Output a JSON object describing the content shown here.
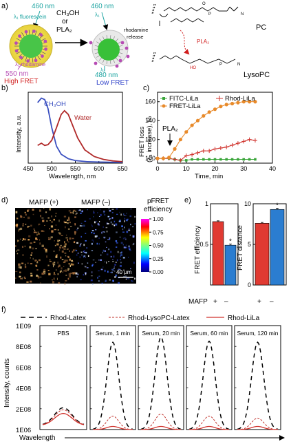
{
  "panel_a": {
    "label": "a)",
    "lambda_top_left": "460 nm",
    "lambda_top_left_sub": "λ₁ fluorescein",
    "reagents_line1": "CH₃OH",
    "reagents_line2": "or",
    "reagents_line3": "PLA₂",
    "lambda_top_right": "460 nm",
    "lambda_top_right_sub": "λ₁",
    "release_label_1": "rhodamine",
    "release_label_2": "release",
    "lambda_bottom_left_sub": "λ₂ rhodamine",
    "lambda_bottom_left": "550 nm",
    "state_left": "High FRET",
    "lambda_bottom_right_sub": "λ₃",
    "lambda_bottom_right": "480 nm",
    "state_right": "Low FRET",
    "pla2_label": "PLA₂",
    "pc_label": "PC",
    "lysopc_label": "LysoPC",
    "colors": {
      "teal": "#1aa3a0",
      "magenta": "#b64bb4",
      "red": "#d11d1d",
      "blue": "#2c3fc8",
      "green": "#3fbf3f",
      "yellow": "#f4e14a"
    }
  },
  "panel_b": {
    "label": "b)",
    "chart_data": {
      "type": "line",
      "xlabel": "Wavelength, nm",
      "ylabel": "Intensity, a.u.",
      "xlim": [
        450,
        650
      ],
      "xticks": [
        "450",
        "500",
        "550",
        "600",
        "650"
      ],
      "series": [
        {
          "name": "CH₃OH",
          "color": "#3a4fc0",
          "x": [
            470,
            478,
            485,
            492,
            500,
            510,
            520,
            535,
            550,
            575,
            600,
            650
          ],
          "y": [
            8.2,
            8.8,
            8.6,
            7.4,
            4.8,
            2.3,
            1.2,
            0.6,
            0.35,
            0.2,
            0.15,
            0.1
          ]
        },
        {
          "name": "Water",
          "color": "#b02828",
          "x": [
            470,
            478,
            485,
            492,
            500,
            510,
            520,
            527,
            535,
            545,
            555,
            570,
            590,
            610,
            630,
            650
          ],
          "y": [
            2.4,
            2.7,
            2.4,
            2.5,
            3.1,
            4.8,
            6.6,
            7.1,
            6.6,
            5.0,
            3.4,
            1.8,
            0.9,
            0.5,
            0.3,
            0.2
          ]
        }
      ]
    }
  },
  "panel_c": {
    "label": "c)",
    "chart_data": {
      "type": "line",
      "xlabel": "Time, min",
      "ylabel_line1": "FRET loss",
      "ylabel_line2": "(λ₃ increase), %",
      "xlim": [
        0,
        40
      ],
      "ylim": [
        95,
        170
      ],
      "xticks": [
        "0",
        "10",
        "20",
        "30",
        "40"
      ],
      "yticks": [
        "100",
        "120",
        "140",
        "160"
      ],
      "arrow_label": "PLA₂",
      "arrow_at_x": 5,
      "series": [
        {
          "name": "FITC-LiLa",
          "color": "#3aa53a",
          "marker": "square",
          "x": [
            0,
            2,
            4,
            6,
            8,
            10,
            12,
            14,
            16,
            18,
            20,
            22,
            24,
            26,
            28,
            30,
            32,
            34
          ],
          "y": [
            100,
            100,
            100,
            99,
            98,
            98,
            99,
            99,
            99,
            99,
            99,
            99,
            99,
            99,
            99,
            99,
            99,
            99
          ]
        },
        {
          "name": "Rhod-LiLa",
          "color": "#d0322c",
          "marker": "plus",
          "x": [
            0,
            2,
            4,
            6,
            8,
            10,
            12,
            14,
            16,
            18,
            20,
            22,
            24,
            26,
            28,
            30,
            32,
            34
          ],
          "y": [
            100,
            100,
            100,
            99,
            98,
            103,
            104,
            106,
            108,
            108,
            110,
            111,
            112,
            114,
            116,
            118,
            120,
            119
          ]
        },
        {
          "name": "FRET-LiLa",
          "color": "#e88a2a",
          "marker": "circle",
          "x": [
            0,
            2,
            4,
            6,
            8,
            10,
            12,
            14,
            16,
            18,
            20,
            22,
            24,
            26,
            28,
            30,
            32,
            34
          ],
          "y": [
            100,
            100,
            101,
            110,
            120,
            128,
            135,
            140,
            145,
            149,
            152,
            155,
            157,
            158,
            159,
            160,
            160,
            160
          ]
        }
      ]
    }
  },
  "panel_d": {
    "label": "d)",
    "image_left_title": "MAFP (+)",
    "image_right_title": "MAFP (–)",
    "colorbar_title_1": "pFRET",
    "colorbar_title_2": "efficiency",
    "colorbar_ticks": [
      "1.00",
      "0.75",
      "0.50",
      "0.25",
      "0.00"
    ],
    "scale_bar": "40 μm"
  },
  "panel_e": {
    "label": "e)",
    "chart_data": [
      {
        "type": "bar",
        "ylabel": "FRET efficiency",
        "categories": [
          "+",
          "–"
        ],
        "values": [
          0.78,
          0.49
        ],
        "errors": [
          0.01,
          0.015
        ],
        "colors": [
          "#e03a32",
          "#2b7dd0"
        ],
        "ylim": [
          0,
          1
        ],
        "yticks": [
          "0.5",
          "1"
        ],
        "asterisk": "*"
      },
      {
        "type": "bar",
        "ylabel": "FRET distance",
        "categories": [
          "+",
          "–"
        ],
        "values": [
          7.6,
          9.3
        ],
        "errors": [
          0.1,
          0.15
        ],
        "colors": [
          "#e03a32",
          "#2b7dd0"
        ],
        "ylim": [
          0,
          10
        ],
        "yticks": [
          "0",
          "5",
          "10"
        ],
        "asterisk": "*"
      }
    ],
    "group_label": "MAFP",
    "tick_plus": "+",
    "tick_minus": "–"
  },
  "panel_f": {
    "label": "f)",
    "legend": [
      {
        "name": "Rhod-Latex",
        "style": "dash-black"
      },
      {
        "name": "Rhod-LysoPC-Latex",
        "style": "dash-red"
      },
      {
        "name": "Rhod-LiLa",
        "style": "solid-red"
      }
    ],
    "ylabel": "Intensity, counts",
    "xlabel": "Wavelength",
    "yticks": [
      "1E09",
      "8E08",
      "6E08",
      "4E08",
      "2E08",
      "1E06"
    ],
    "chart_data": {
      "type": "line",
      "panels": [
        {
          "title": "PBS",
          "peaks": {
            "Rhod-Latex": 210000000.0,
            "Rhod-LysoPC-Latex": 190000000.0,
            "Rhod-LiLa": 155000000.0
          }
        },
        {
          "title": "Serum, 1 min",
          "peaks": {
            "Rhod-Latex": 840000000.0,
            "Rhod-LysoPC-Latex": 130000000.0,
            "Rhod-LiLa": 30000000.0
          }
        },
        {
          "title": "Serum, 20 min",
          "peaks": {
            "Rhod-Latex": 890000000.0,
            "Rhod-LysoPC-Latex": 150000000.0,
            "Rhod-LiLa": 30000000.0
          }
        },
        {
          "title": "Serum, 60 min",
          "peaks": {
            "Rhod-Latex": 850000000.0,
            "Rhod-LysoPC-Latex": 130000000.0,
            "Rhod-LiLa": 30000000.0
          }
        },
        {
          "title": "Serum, 120 min",
          "peaks": {
            "Rhod-Latex": 840000000.0,
            "Rhod-LysoPC-Latex": 110000000.0,
            "Rhod-LiLa": 30000000.0
          }
        }
      ]
    }
  }
}
